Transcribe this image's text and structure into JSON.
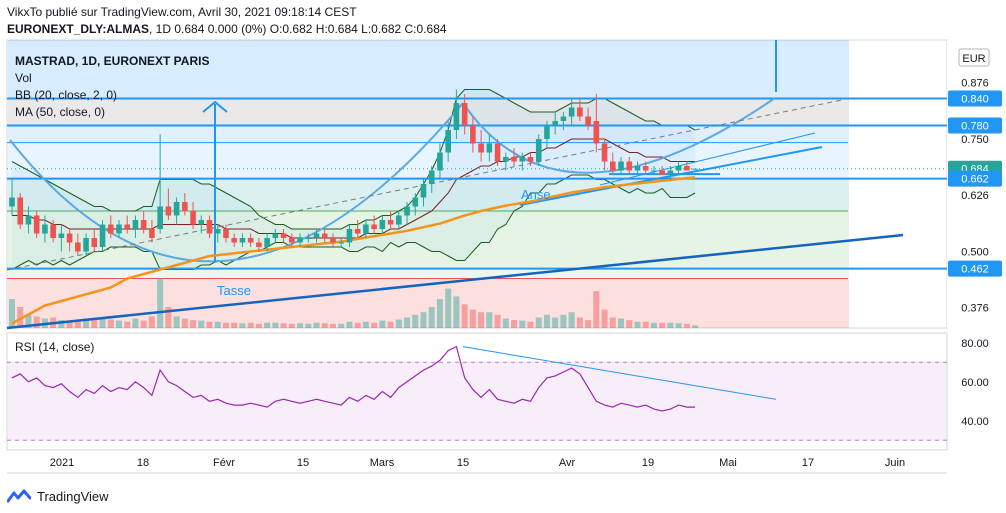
{
  "header": {
    "author_line": "VikxTo publié sur TradingView.com, Avril 30, 2021 09:18:14 CEST",
    "author": "VikxTo",
    "symbol_line_prefix": "EURONEXT_DLY:ALMAS",
    "symbol_line_values": ", 1D  0.684  0.000 (0%)  O:0.682  H:0.684  L:0.682  C:0.684"
  },
  "legend": {
    "title": "MASTRAD, 1D, EURONEXT PARIS",
    "vol": "Vol",
    "bb": "BB (20, close, 2, 0)",
    "ma": "MA (50, close, 0)"
  },
  "rsi_label": "RSI (14, close)",
  "footer": {
    "brand": "TradingView"
  },
  "colors": {
    "up": "#26a69a",
    "down": "#ef5350",
    "blue_line": "#2196f3",
    "ma_orange": "#f7931a",
    "rsi_purple": "#9c27b0",
    "bb_green": "#1b5e20",
    "bb_basis": "#7b1f1f"
  },
  "chart_data": {
    "type": "candlestick",
    "currency": "EUR",
    "price_axis": {
      "ticks": [
        "0.876",
        "0.750",
        "0.626",
        "0.500",
        "0.376"
      ],
      "ylim": [
        0.33,
        0.97
      ]
    },
    "price_badges": [
      {
        "label": "0.840",
        "value": 0.84
      },
      {
        "label": "0.780",
        "value": 0.78
      },
      {
        "label": "0.684",
        "value": 0.684
      },
      {
        "label": "0.662",
        "value": 0.662
      },
      {
        "label": "0.462",
        "value": 0.462
      }
    ],
    "rsi_axis": {
      "ticks": [
        "80.00",
        "60.00",
        "40.00"
      ],
      "ylim": [
        25,
        85
      ],
      "bands": [
        70,
        30
      ]
    },
    "x_axis_labels": [
      "2021",
      "18",
      "Févr",
      "15",
      "Mars",
      "15",
      "Avr",
      "19",
      "Mai",
      "17",
      "Juin"
    ],
    "annotations": [
      "Tasse",
      "Anse"
    ],
    "candles": [
      [
        0.6,
        0.66,
        0.58,
        0.62
      ],
      [
        0.62,
        0.63,
        0.55,
        0.56
      ],
      [
        0.56,
        0.6,
        0.54,
        0.58
      ],
      [
        0.58,
        0.59,
        0.53,
        0.54
      ],
      [
        0.54,
        0.58,
        0.52,
        0.56
      ],
      [
        0.56,
        0.57,
        0.52,
        0.53
      ],
      [
        0.53,
        0.56,
        0.5,
        0.54
      ],
      [
        0.54,
        0.55,
        0.5,
        0.52
      ],
      [
        0.52,
        0.54,
        0.49,
        0.5
      ],
      [
        0.5,
        0.54,
        0.49,
        0.53
      ],
      [
        0.53,
        0.55,
        0.5,
        0.51
      ],
      [
        0.51,
        0.57,
        0.5,
        0.56
      ],
      [
        0.56,
        0.58,
        0.53,
        0.54
      ],
      [
        0.54,
        0.57,
        0.53,
        0.56
      ],
      [
        0.56,
        0.58,
        0.54,
        0.55
      ],
      [
        0.55,
        0.58,
        0.53,
        0.57
      ],
      [
        0.57,
        0.59,
        0.54,
        0.55
      ],
      [
        0.55,
        0.57,
        0.52,
        0.53
      ],
      [
        0.55,
        0.76,
        0.54,
        0.6
      ],
      [
        0.6,
        0.64,
        0.57,
        0.58
      ],
      [
        0.58,
        0.62,
        0.56,
        0.61
      ],
      [
        0.61,
        0.63,
        0.58,
        0.59
      ],
      [
        0.59,
        0.61,
        0.55,
        0.56
      ],
      [
        0.56,
        0.58,
        0.54,
        0.57
      ],
      [
        0.57,
        0.58,
        0.53,
        0.54
      ],
      [
        0.54,
        0.56,
        0.52,
        0.55
      ],
      [
        0.55,
        0.56,
        0.52,
        0.53
      ],
      [
        0.53,
        0.54,
        0.51,
        0.52
      ],
      [
        0.52,
        0.54,
        0.51,
        0.53
      ],
      [
        0.53,
        0.54,
        0.51,
        0.52
      ],
      [
        0.52,
        0.53,
        0.5,
        0.51
      ],
      [
        0.51,
        0.54,
        0.5,
        0.53
      ],
      [
        0.53,
        0.55,
        0.52,
        0.54
      ],
      [
        0.54,
        0.55,
        0.52,
        0.53
      ],
      [
        0.53,
        0.54,
        0.51,
        0.52
      ],
      [
        0.52,
        0.54,
        0.51,
        0.53
      ],
      [
        0.53,
        0.54,
        0.52,
        0.53
      ],
      [
        0.53,
        0.55,
        0.52,
        0.54
      ],
      [
        0.54,
        0.55,
        0.52,
        0.53
      ],
      [
        0.53,
        0.54,
        0.51,
        0.52
      ],
      [
        0.52,
        0.53,
        0.51,
        0.52
      ],
      [
        0.52,
        0.56,
        0.51,
        0.55
      ],
      [
        0.55,
        0.57,
        0.53,
        0.54
      ],
      [
        0.54,
        0.57,
        0.53,
        0.56
      ],
      [
        0.56,
        0.58,
        0.54,
        0.55
      ],
      [
        0.55,
        0.58,
        0.54,
        0.57
      ],
      [
        0.57,
        0.59,
        0.55,
        0.56
      ],
      [
        0.56,
        0.59,
        0.55,
        0.58
      ],
      [
        0.58,
        0.61,
        0.56,
        0.6
      ],
      [
        0.6,
        0.63,
        0.58,
        0.62
      ],
      [
        0.62,
        0.66,
        0.6,
        0.65
      ],
      [
        0.65,
        0.69,
        0.63,
        0.68
      ],
      [
        0.68,
        0.74,
        0.66,
        0.72
      ],
      [
        0.72,
        0.79,
        0.7,
        0.77
      ],
      [
        0.77,
        0.86,
        0.75,
        0.83
      ],
      [
        0.83,
        0.85,
        0.76,
        0.78
      ],
      [
        0.78,
        0.8,
        0.72,
        0.74
      ],
      [
        0.74,
        0.77,
        0.7,
        0.72
      ],
      [
        0.72,
        0.76,
        0.7,
        0.74
      ],
      [
        0.74,
        0.75,
        0.69,
        0.7
      ],
      [
        0.7,
        0.72,
        0.68,
        0.71
      ],
      [
        0.71,
        0.73,
        0.69,
        0.7
      ],
      [
        0.7,
        0.72,
        0.68,
        0.71
      ],
      [
        0.71,
        0.72,
        0.69,
        0.7
      ],
      [
        0.7,
        0.76,
        0.69,
        0.75
      ],
      [
        0.75,
        0.79,
        0.73,
        0.78
      ],
      [
        0.78,
        0.81,
        0.76,
        0.79
      ],
      [
        0.79,
        0.81,
        0.77,
        0.8
      ],
      [
        0.8,
        0.84,
        0.78,
        0.82
      ],
      [
        0.82,
        0.84,
        0.79,
        0.8
      ],
      [
        0.8,
        0.82,
        0.77,
        0.78
      ],
      [
        0.79,
        0.85,
        0.72,
        0.74
      ],
      [
        0.74,
        0.75,
        0.68,
        0.7
      ],
      [
        0.7,
        0.72,
        0.67,
        0.68
      ],
      [
        0.68,
        0.71,
        0.67,
        0.7
      ],
      [
        0.7,
        0.71,
        0.67,
        0.68
      ],
      [
        0.68,
        0.7,
        0.67,
        0.69
      ],
      [
        0.69,
        0.7,
        0.67,
        0.68
      ],
      [
        0.68,
        0.69,
        0.67,
        0.68
      ],
      [
        0.68,
        0.69,
        0.67,
        0.67
      ],
      [
        0.67,
        0.69,
        0.66,
        0.68
      ],
      [
        0.68,
        0.7,
        0.67,
        0.69
      ],
      [
        0.69,
        0.7,
        0.68,
        0.68
      ],
      [
        0.682,
        0.684,
        0.682,
        0.684
      ]
    ],
    "volume": [
      0.55,
      0.4,
      0.25,
      0.22,
      0.18,
      0.2,
      0.15,
      0.14,
      0.12,
      0.18,
      0.15,
      0.2,
      0.16,
      0.14,
      0.12,
      0.18,
      0.14,
      0.22,
      0.95,
      0.4,
      0.22,
      0.18,
      0.15,
      0.14,
      0.12,
      0.12,
      0.1,
      0.1,
      0.09,
      0.1,
      0.08,
      0.1,
      0.1,
      0.09,
      0.08,
      0.09,
      0.08,
      0.1,
      0.09,
      0.08,
      0.08,
      0.12,
      0.1,
      0.12,
      0.1,
      0.14,
      0.12,
      0.16,
      0.2,
      0.25,
      0.3,
      0.4,
      0.55,
      0.75,
      0.6,
      0.45,
      0.35,
      0.3,
      0.3,
      0.25,
      0.18,
      0.15,
      0.14,
      0.12,
      0.2,
      0.25,
      0.2,
      0.25,
      0.3,
      0.2,
      0.15,
      0.7,
      0.35,
      0.2,
      0.18,
      0.15,
      0.12,
      0.12,
      0.1,
      0.1,
      0.1,
      0.09,
      0.08,
      0.05
    ],
    "rsi": [
      62,
      64,
      60,
      62,
      58,
      57,
      59,
      55,
      52,
      56,
      54,
      58,
      55,
      57,
      56,
      60,
      57,
      53,
      66,
      60,
      58,
      55,
      52,
      53,
      50,
      51,
      49,
      48,
      48,
      49,
      48,
      47,
      50,
      51,
      50,
      49,
      50,
      51,
      50,
      49,
      48,
      52,
      50,
      53,
      51,
      55,
      52,
      57,
      60,
      63,
      66,
      68,
      71,
      76,
      78,
      62,
      56,
      52,
      56,
      51,
      50,
      49,
      51,
      50,
      57,
      62,
      63,
      65,
      67,
      64,
      57,
      50,
      48,
      47,
      49,
      48,
      47,
      48,
      46,
      45,
      46,
      48,
      47,
      47
    ],
    "ma50": [
      0.34,
      0.35,
      0.36,
      0.37,
      0.38,
      0.385,
      0.39,
      0.395,
      0.4,
      0.405,
      0.41,
      0.415,
      0.42,
      0.43,
      0.44,
      0.445,
      0.45,
      0.455,
      0.46,
      0.465,
      0.47,
      0.475,
      0.48,
      0.485,
      0.49,
      0.492,
      0.494,
      0.496,
      0.498,
      0.5,
      0.502,
      0.504,
      0.506,
      0.508,
      0.51,
      0.512,
      0.514,
      0.516,
      0.518,
      0.52,
      0.522,
      0.525,
      0.528,
      0.531,
      0.534,
      0.537,
      0.54,
      0.543,
      0.546,
      0.55,
      0.554,
      0.558,
      0.562,
      0.568,
      0.574,
      0.58,
      0.585,
      0.59,
      0.594,
      0.598,
      0.602,
      0.605,
      0.608,
      0.611,
      0.615,
      0.619,
      0.623,
      0.627,
      0.631,
      0.634,
      0.637,
      0.64,
      0.643,
      0.645,
      0.647,
      0.649,
      0.651,
      0.653,
      0.655,
      0.657,
      0.659,
      0.661,
      0.663,
      0.665
    ],
    "bb_upper": [
      0.7,
      0.69,
      0.68,
      0.67,
      0.66,
      0.65,
      0.64,
      0.63,
      0.62,
      0.61,
      0.6,
      0.6,
      0.59,
      0.59,
      0.59,
      0.59,
      0.6,
      0.6,
      0.66,
      0.66,
      0.66,
      0.66,
      0.66,
      0.65,
      0.65,
      0.64,
      0.63,
      0.62,
      0.61,
      0.6,
      0.58,
      0.57,
      0.56,
      0.56,
      0.55,
      0.55,
      0.55,
      0.55,
      0.55,
      0.55,
      0.55,
      0.56,
      0.56,
      0.57,
      0.57,
      0.58,
      0.58,
      0.59,
      0.6,
      0.62,
      0.65,
      0.68,
      0.72,
      0.77,
      0.84,
      0.86,
      0.86,
      0.86,
      0.86,
      0.85,
      0.84,
      0.83,
      0.82,
      0.81,
      0.81,
      0.81,
      0.81,
      0.82,
      0.83,
      0.83,
      0.83,
      0.84,
      0.84,
      0.83,
      0.82,
      0.81,
      0.8,
      0.79,
      0.79,
      0.78,
      0.78,
      0.78,
      0.78,
      0.77
    ],
    "bb_basis": [
      0.58,
      0.58,
      0.58,
      0.57,
      0.57,
      0.56,
      0.56,
      0.55,
      0.55,
      0.55,
      0.55,
      0.55,
      0.55,
      0.55,
      0.55,
      0.55,
      0.55,
      0.55,
      0.56,
      0.56,
      0.56,
      0.56,
      0.56,
      0.56,
      0.56,
      0.56,
      0.55,
      0.55,
      0.55,
      0.55,
      0.54,
      0.54,
      0.54,
      0.54,
      0.53,
      0.53,
      0.53,
      0.53,
      0.53,
      0.53,
      0.53,
      0.53,
      0.53,
      0.54,
      0.54,
      0.54,
      0.55,
      0.55,
      0.56,
      0.57,
      0.58,
      0.59,
      0.61,
      0.63,
      0.66,
      0.67,
      0.68,
      0.69,
      0.69,
      0.7,
      0.7,
      0.71,
      0.71,
      0.72,
      0.72,
      0.73,
      0.73,
      0.74,
      0.75,
      0.75,
      0.75,
      0.75,
      0.75,
      0.74,
      0.73,
      0.72,
      0.72,
      0.71,
      0.71,
      0.71,
      0.7,
      0.7,
      0.7,
      0.7
    ],
    "bb_lower": [
      0.46,
      0.47,
      0.48,
      0.47,
      0.48,
      0.47,
      0.48,
      0.47,
      0.48,
      0.49,
      0.5,
      0.5,
      0.51,
      0.51,
      0.51,
      0.51,
      0.5,
      0.5,
      0.46,
      0.46,
      0.46,
      0.46,
      0.46,
      0.47,
      0.47,
      0.48,
      0.47,
      0.48,
      0.49,
      0.5,
      0.5,
      0.51,
      0.52,
      0.52,
      0.51,
      0.51,
      0.51,
      0.51,
      0.51,
      0.51,
      0.51,
      0.5,
      0.5,
      0.51,
      0.51,
      0.5,
      0.52,
      0.51,
      0.52,
      0.52,
      0.51,
      0.5,
      0.5,
      0.49,
      0.48,
      0.48,
      0.5,
      0.52,
      0.52,
      0.55,
      0.56,
      0.59,
      0.6,
      0.63,
      0.63,
      0.65,
      0.65,
      0.66,
      0.67,
      0.67,
      0.67,
      0.66,
      0.66,
      0.65,
      0.64,
      0.63,
      0.64,
      0.63,
      0.63,
      0.64,
      0.62,
      0.62,
      0.62,
      0.63
    ]
  }
}
